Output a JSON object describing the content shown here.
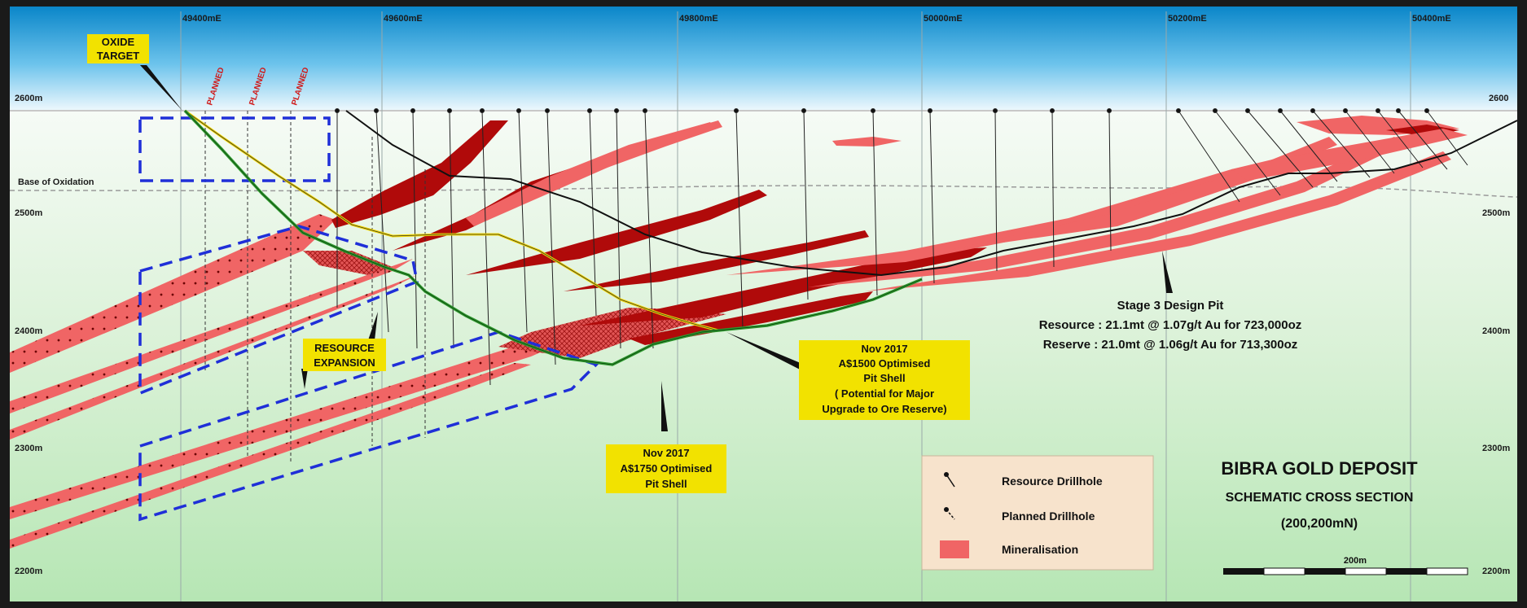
{
  "title": {
    "main": "BIBRA GOLD DEPOSIT",
    "sub": "SCHEMATIC CROSS SECTION",
    "northing": "(200,200mN)"
  },
  "easting_labels": [
    "49400mE",
    "49600mE",
    "49800mE",
    "50000mE",
    "50200mE",
    "50400mE"
  ],
  "elevation_labels_left": [
    "2600m",
    "2500m",
    "2400m",
    "2300m",
    "2200m"
  ],
  "elevation_labels_right": [
    "2600",
    "2500m",
    "2400m",
    "2300m",
    "2200m"
  ],
  "base_of_oxidation": "Base of Oxidation",
  "planned_tags": [
    "PLANNED",
    "PLANNED",
    "PLANNED"
  ],
  "callouts": {
    "oxide_target": [
      "OXIDE",
      "TARGET"
    ],
    "resource_expansion": [
      "RESOURCE",
      "EXPANSION"
    ],
    "pit_1500": [
      "Nov 2017",
      "A$1500 Optimised",
      "Pit Shell",
      "( Potential for Major",
      "Upgrade to Ore Reserve)"
    ],
    "pit_1750": [
      "Nov 2017",
      "A$1750 Optimised",
      "Pit Shell"
    ],
    "stage3": [
      "Stage 3 Design Pit",
      "Resource : 21.1mt @ 1.07g/t Au for 723,000oz",
      "Reserve : 21.0mt @ 1.06g/t Au for 713,300oz"
    ]
  },
  "legend": {
    "items": [
      {
        "label": "Resource Drillhole",
        "icon": "resource-drillhole-icon"
      },
      {
        "label": "Planned Drillhole",
        "icon": "planned-drillhole-icon"
      },
      {
        "label": "Mineralisation",
        "icon": "mineralisation-swatch-icon"
      }
    ]
  },
  "scale_bar": {
    "label": "200m"
  },
  "colors": {
    "sky_top": "#0a86c9",
    "ground_top": "#f6fbf6",
    "ground_bottom": "#b6e6b4",
    "mineral_dark": "#b00a0a",
    "mineral_light": "#f06565",
    "pit_1750": "#2e9a2e",
    "pit_1500": "#e0c400",
    "stage3": "#111111",
    "target_box": "#1f2fd8",
    "callout_bg": "#f2e200",
    "legend_bg": "#f7e3cc"
  }
}
